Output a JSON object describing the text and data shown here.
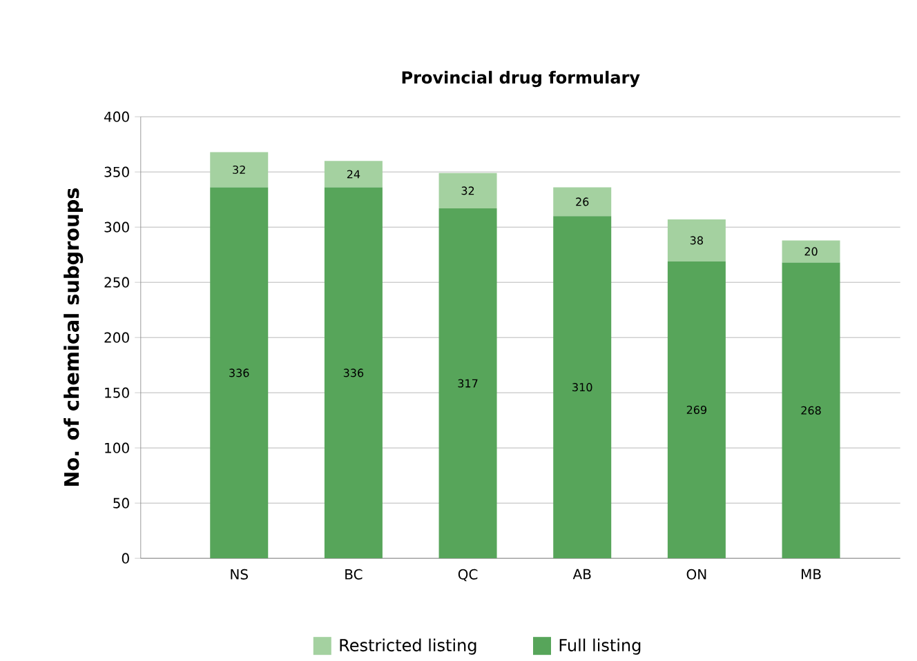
{
  "chart_data": {
    "type": "bar",
    "stacked": true,
    "title": "Provincial drug formulary",
    "ylabel": "No. of chemical subgroups",
    "categories": [
      "NS",
      "BC",
      "QC",
      "AB",
      "ON",
      "MB"
    ],
    "series": [
      {
        "name": "Full listing",
        "color": "#57a55a",
        "values": [
          336,
          336,
          317,
          310,
          269,
          268
        ]
      },
      {
        "name": "Restricted listing",
        "color": "#a4d1a0",
        "values": [
          32,
          24,
          32,
          26,
          38,
          20
        ]
      }
    ],
    "ylim": [
      0,
      400
    ],
    "yticks": [
      0,
      50,
      100,
      150,
      200,
      250,
      300,
      350,
      400
    ],
    "grid": "y",
    "legend": "bottom",
    "data_labels": true
  }
}
